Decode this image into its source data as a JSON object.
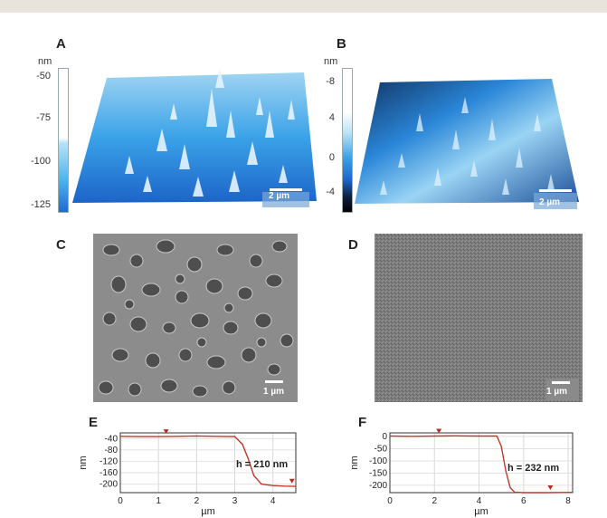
{
  "panels": {
    "A": {
      "letter": "A",
      "unit": "nm",
      "ticks": [
        "-50",
        "-75",
        "-100",
        "-125"
      ],
      "scale": "2 µm"
    },
    "B": {
      "letter": "B",
      "unit": "nm",
      "ticks": [
        "-8",
        "4",
        "0",
        "-4"
      ],
      "scale": "2 µm"
    },
    "C": {
      "letter": "C",
      "scale": "1 µm"
    },
    "D": {
      "letter": "D",
      "scale": "1 µm"
    },
    "E": {
      "letter": "E",
      "annotation": "h = 210 nm"
    },
    "F": {
      "letter": "F",
      "annotation": "h = 232 nm"
    }
  },
  "colors": {
    "afm_light": "#e8f6ff",
    "afm_mid": "#36a6ea",
    "afm_deep": "#1c64c8",
    "afm_dark": "#0d1d3a",
    "profile_line": "#c0392b",
    "sem_gray": "#8c8c8c"
  },
  "chart_data": [
    {
      "type": "line",
      "panel": "E",
      "xlabel": "µm",
      "ylabel": "nm",
      "xticks": [
        "0",
        "1",
        "2",
        "3",
        "4"
      ],
      "yticks": [
        "-40",
        "-80",
        "-120",
        "-160",
        "-200"
      ],
      "xlim": [
        0,
        4.6
      ],
      "ylim": [
        -230,
        -20
      ],
      "series": [
        {
          "x": [
            0,
            0.5,
            1,
            1.5,
            2,
            2.5,
            3.0,
            3.2,
            3.35,
            3.5,
            3.7,
            4.0,
            4.3,
            4.6
          ],
          "y": [
            -32,
            -33,
            -33,
            -32,
            -31,
            -32,
            -33,
            -60,
            -110,
            -170,
            -200,
            -205,
            -207,
            -208
          ]
        }
      ],
      "annotations": [
        "h = 210 nm"
      ]
    },
    {
      "type": "line",
      "panel": "F",
      "xlabel": "µm",
      "ylabel": "nm",
      "xticks": [
        "0",
        "2",
        "4",
        "6",
        "8"
      ],
      "yticks": [
        "0",
        "-50",
        "-100",
        "-150",
        "-200"
      ],
      "xlim": [
        0,
        8.2
      ],
      "ylim": [
        -230,
        15
      ],
      "series": [
        {
          "x": [
            0,
            1,
            2,
            3,
            4,
            4.8,
            5.0,
            5.2,
            5.4,
            5.6,
            6,
            7,
            8.2
          ],
          "y": [
            2,
            1,
            2,
            3,
            2,
            2,
            -40,
            -140,
            -210,
            -228,
            -230,
            -230,
            -229
          ]
        }
      ],
      "annotations": [
        "h = 232 nm"
      ]
    }
  ]
}
